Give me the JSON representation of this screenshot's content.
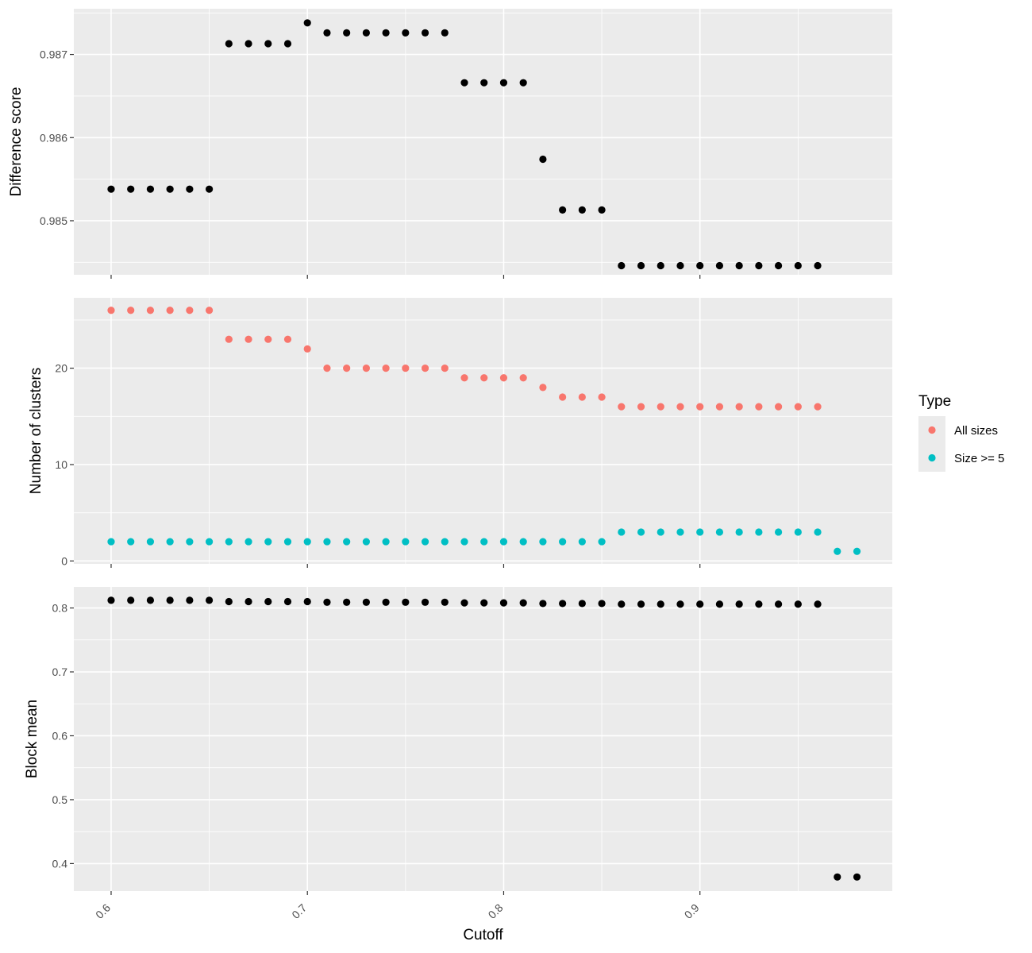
{
  "chart_data": [
    {
      "type": "scatter",
      "panel": "top",
      "title": "",
      "xlabel": "",
      "ylabel": "Difference score",
      "xlim": [
        0.581,
        0.998
      ],
      "ylim": [
        0.98435,
        0.98755
      ],
      "yticks": [
        0.985,
        0.986,
        0.987
      ],
      "ytick_labels": [
        "0.985",
        "0.986",
        "0.987"
      ],
      "grid": true,
      "series": [
        {
          "color": "#000000",
          "points": [
            [
              0.6,
              0.98538
            ],
            [
              0.61,
              0.98538
            ],
            [
              0.62,
              0.98538
            ],
            [
              0.63,
              0.98538
            ],
            [
              0.64,
              0.98538
            ],
            [
              0.65,
              0.98538
            ],
            [
              0.66,
              0.98713
            ],
            [
              0.67,
              0.98713
            ],
            [
              0.68,
              0.98713
            ],
            [
              0.69,
              0.98713
            ],
            [
              0.7,
              0.98738
            ],
            [
              0.71,
              0.98726
            ],
            [
              0.72,
              0.98726
            ],
            [
              0.73,
              0.98726
            ],
            [
              0.74,
              0.98726
            ],
            [
              0.75,
              0.98726
            ],
            [
              0.76,
              0.98726
            ],
            [
              0.77,
              0.98726
            ],
            [
              0.78,
              0.98666
            ],
            [
              0.79,
              0.98666
            ],
            [
              0.8,
              0.98666
            ],
            [
              0.81,
              0.98666
            ],
            [
              0.82,
              0.98574
            ],
            [
              0.83,
              0.98513
            ],
            [
              0.84,
              0.98513
            ],
            [
              0.85,
              0.98513
            ],
            [
              0.86,
              0.98446
            ],
            [
              0.87,
              0.98446
            ],
            [
              0.88,
              0.98446
            ],
            [
              0.89,
              0.98446
            ],
            [
              0.9,
              0.98446
            ],
            [
              0.91,
              0.98446
            ],
            [
              0.92,
              0.98446
            ],
            [
              0.93,
              0.98446
            ],
            [
              0.94,
              0.98446
            ],
            [
              0.95,
              0.98446
            ],
            [
              0.96,
              0.98446
            ]
          ]
        }
      ]
    },
    {
      "type": "scatter",
      "panel": "middle",
      "title": "",
      "xlabel": "",
      "ylabel": "Number of clusters",
      "xlim": [
        0.581,
        0.998
      ],
      "ylim": [
        -0.3,
        27.3
      ],
      "yticks": [
        0,
        10,
        20
      ],
      "ytick_labels": [
        "0",
        "10",
        "20"
      ],
      "grid": true,
      "legend": {
        "title": "Type",
        "placement": "right"
      },
      "series": [
        {
          "name": "All sizes",
          "color": "#F8766D",
          "points": [
            [
              0.6,
              26
            ],
            [
              0.61,
              26
            ],
            [
              0.62,
              26
            ],
            [
              0.63,
              26
            ],
            [
              0.64,
              26
            ],
            [
              0.65,
              26
            ],
            [
              0.66,
              23
            ],
            [
              0.67,
              23
            ],
            [
              0.68,
              23
            ],
            [
              0.69,
              23
            ],
            [
              0.7,
              22
            ],
            [
              0.71,
              20
            ],
            [
              0.72,
              20
            ],
            [
              0.73,
              20
            ],
            [
              0.74,
              20
            ],
            [
              0.75,
              20
            ],
            [
              0.76,
              20
            ],
            [
              0.77,
              20
            ],
            [
              0.78,
              19
            ],
            [
              0.79,
              19
            ],
            [
              0.8,
              19
            ],
            [
              0.81,
              19
            ],
            [
              0.82,
              18
            ],
            [
              0.83,
              17
            ],
            [
              0.84,
              17
            ],
            [
              0.85,
              17
            ],
            [
              0.86,
              16
            ],
            [
              0.87,
              16
            ],
            [
              0.88,
              16
            ],
            [
              0.89,
              16
            ],
            [
              0.9,
              16
            ],
            [
              0.91,
              16
            ],
            [
              0.92,
              16
            ],
            [
              0.93,
              16
            ],
            [
              0.94,
              16
            ],
            [
              0.95,
              16
            ],
            [
              0.96,
              16
            ]
          ]
        },
        {
          "name": "Size >= 5",
          "color": "#00BFC4",
          "points": [
            [
              0.6,
              2
            ],
            [
              0.61,
              2
            ],
            [
              0.62,
              2
            ],
            [
              0.63,
              2
            ],
            [
              0.64,
              2
            ],
            [
              0.65,
              2
            ],
            [
              0.66,
              2
            ],
            [
              0.67,
              2
            ],
            [
              0.68,
              2
            ],
            [
              0.69,
              2
            ],
            [
              0.7,
              2
            ],
            [
              0.71,
              2
            ],
            [
              0.72,
              2
            ],
            [
              0.73,
              2
            ],
            [
              0.74,
              2
            ],
            [
              0.75,
              2
            ],
            [
              0.76,
              2
            ],
            [
              0.77,
              2
            ],
            [
              0.78,
              2
            ],
            [
              0.79,
              2
            ],
            [
              0.8,
              2
            ],
            [
              0.81,
              2
            ],
            [
              0.82,
              2
            ],
            [
              0.83,
              2
            ],
            [
              0.84,
              2
            ],
            [
              0.85,
              2
            ],
            [
              0.86,
              3
            ],
            [
              0.87,
              3
            ],
            [
              0.88,
              3
            ],
            [
              0.89,
              3
            ],
            [
              0.9,
              3
            ],
            [
              0.91,
              3
            ],
            [
              0.92,
              3
            ],
            [
              0.93,
              3
            ],
            [
              0.94,
              3
            ],
            [
              0.95,
              3
            ],
            [
              0.96,
              3
            ],
            [
              0.97,
              1
            ],
            [
              0.98,
              1
            ]
          ]
        }
      ]
    },
    {
      "type": "scatter",
      "panel": "bottom",
      "title": "",
      "xlabel": "Cutoff",
      "ylabel": "Block mean",
      "xlim": [
        0.581,
        0.998
      ],
      "ylim": [
        0.357,
        0.833
      ],
      "yticks": [
        0.4,
        0.5,
        0.6,
        0.7,
        0.8
      ],
      "ytick_labels": [
        "0.4",
        "0.5",
        "0.6",
        "0.7",
        "0.8"
      ],
      "xticks": [
        0.6,
        0.7,
        0.8,
        0.9
      ],
      "xtick_labels": [
        "0.6",
        "0.7",
        "0.8",
        "0.9"
      ],
      "grid": true,
      "series": [
        {
          "color": "#000000",
          "points": [
            [
              0.6,
              0.812
            ],
            [
              0.61,
              0.812
            ],
            [
              0.62,
              0.812
            ],
            [
              0.63,
              0.812
            ],
            [
              0.64,
              0.812
            ],
            [
              0.65,
              0.812
            ],
            [
              0.66,
              0.81
            ],
            [
              0.67,
              0.81
            ],
            [
              0.68,
              0.81
            ],
            [
              0.69,
              0.81
            ],
            [
              0.7,
              0.81
            ],
            [
              0.71,
              0.809
            ],
            [
              0.72,
              0.809
            ],
            [
              0.73,
              0.809
            ],
            [
              0.74,
              0.809
            ],
            [
              0.75,
              0.809
            ],
            [
              0.76,
              0.809
            ],
            [
              0.77,
              0.809
            ],
            [
              0.78,
              0.808
            ],
            [
              0.79,
              0.808
            ],
            [
              0.8,
              0.808
            ],
            [
              0.81,
              0.808
            ],
            [
              0.82,
              0.807
            ],
            [
              0.83,
              0.807
            ],
            [
              0.84,
              0.807
            ],
            [
              0.85,
              0.807
            ],
            [
              0.86,
              0.806
            ],
            [
              0.87,
              0.806
            ],
            [
              0.88,
              0.806
            ],
            [
              0.89,
              0.806
            ],
            [
              0.9,
              0.806
            ],
            [
              0.91,
              0.806
            ],
            [
              0.92,
              0.806
            ],
            [
              0.93,
              0.806
            ],
            [
              0.94,
              0.806
            ],
            [
              0.95,
              0.806
            ],
            [
              0.96,
              0.806
            ],
            [
              0.97,
              0.379
            ],
            [
              0.98,
              0.379
            ]
          ]
        }
      ]
    }
  ],
  "colors": {
    "panel_background": "#EBEBEB",
    "grid_major": "#FFFFFF",
    "tick": "#333333"
  }
}
